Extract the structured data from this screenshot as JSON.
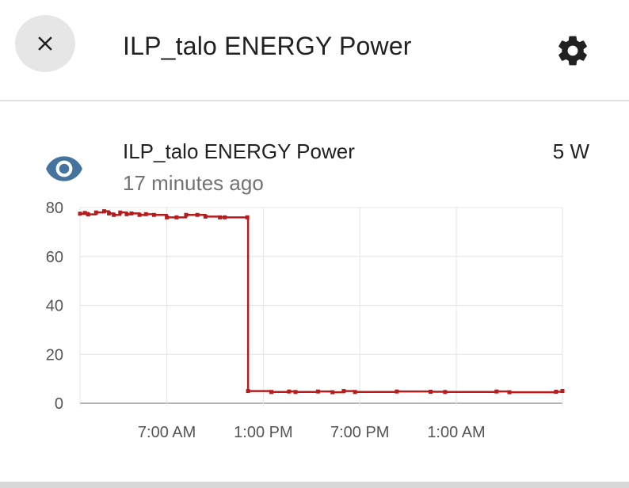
{
  "dialog": {
    "title": "ILP_talo ENERGY Power",
    "close_icon": "close-icon",
    "settings_icon": "gear-icon"
  },
  "entity": {
    "icon": "eye-icon",
    "icon_color": "#44739e",
    "name": "ILP_talo ENERGY Power",
    "last_changed": "17 minutes ago",
    "state": "5 W"
  },
  "chart_data": {
    "type": "line",
    "title": "",
    "xlabel": "",
    "ylabel": "",
    "ylim": [
      0,
      80
    ],
    "yticks": [
      "0",
      "20",
      "40",
      "60",
      "80"
    ],
    "xticks": [
      "7:00 AM",
      "1:00 PM",
      "7:00 PM",
      "1:00 AM"
    ],
    "x_range_hours": [
      -5.4,
      24.6
    ],
    "grid": true,
    "line_color": "#b71c1c",
    "series": [
      {
        "name": "",
        "step": true,
        "x": [
          -5.4,
          -5.1,
          -4.9,
          -4.4,
          -3.9,
          -3.6,
          -3.3,
          -2.9,
          -2.5,
          -2.2,
          -1.7,
          -1.3,
          -0.8,
          0.0,
          0.6,
          1.2,
          1.9,
          2.4,
          3.3,
          3.6,
          5.0,
          5.05,
          6.5,
          7.6,
          8.0,
          9.4,
          10.3,
          11.0,
          11.7,
          14.3,
          16.4,
          17.3,
          20.5,
          21.3,
          24.2,
          24.6
        ],
        "y": [
          77.5,
          77.8,
          77.2,
          78.0,
          78.5,
          77.6,
          77.0,
          78.0,
          77.3,
          77.6,
          77.0,
          77.3,
          77.0,
          76.0,
          76.0,
          77.0,
          77.0,
          76.3,
          76.0,
          76.0,
          76.0,
          5,
          4.6,
          4.8,
          4.6,
          4.8,
          4.5,
          5.0,
          4.6,
          4.8,
          4.7,
          4.6,
          4.8,
          4.5,
          4.7,
          5.0
        ]
      }
    ]
  }
}
